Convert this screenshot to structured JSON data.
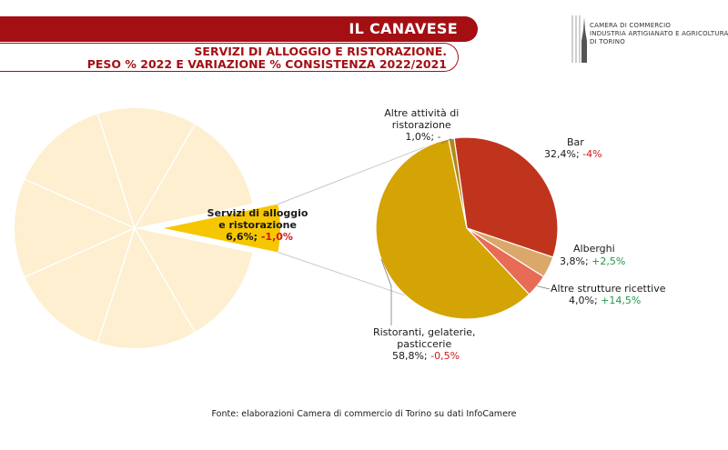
{
  "header": {
    "banner_title": "IL CANAVESE",
    "subtitle_line1": "SERVIZI DI ALLOGGIO E RISTORAZIONE.",
    "subtitle_line2": "PESO % 2022 E VARIAZIONE % CONSISTENZA 2022/2021"
  },
  "logo": {
    "line1": "CAMERA DI COMMERCIO",
    "line2": "INDUSTRIA ARTIGIANATO E AGRICOLTURA",
    "line3": "DI TORINO"
  },
  "chart_data": {
    "type": "pie",
    "title": "SERVIZI DI ALLOGGIO E RISTORAZIONE. PESO % 2022 E VARIAZIONE % CONSISTENZA 2022/2021",
    "main": {
      "highlight": {
        "label_line1": "Servizi di alloggio",
        "label_line2": "e ristorazione",
        "share_text": "6,6%;",
        "change_text": "-1,0%",
        "value": 6.6,
        "change": -1.0
      },
      "other_value": 93.4,
      "other_slice_count": 7
    },
    "detail": [
      {
        "name_lines": [
          "Bar"
        ],
        "value": 32.4,
        "share_text": "32,4%;",
        "change_text": "-4%",
        "trend": "neg",
        "color": "#c0341d"
      },
      {
        "name_lines": [
          "Alberghi"
        ],
        "value": 3.8,
        "share_text": "3,8%;",
        "change_text": "+2,5%",
        "trend": "pos",
        "color": "#dba86b"
      },
      {
        "name_lines": [
          "Altre strutture ricettive"
        ],
        "value": 4.0,
        "share_text": "4,0%;",
        "change_text": "+14,5%",
        "trend": "pos",
        "color": "#e86b55"
      },
      {
        "name_lines": [
          "Ristoranti, gelaterie,",
          "pasticcerie"
        ],
        "value": 58.8,
        "share_text": "58,8%;",
        "change_text": "-0,5%",
        "trend": "neg",
        "color": "#d4a304"
      },
      {
        "name_lines": [
          "Altre attività di",
          "ristorazione"
        ],
        "value": 1.0,
        "share_text": "1,0%;",
        "change_text": "-",
        "trend": "neg",
        "color": "#b08a1a"
      }
    ],
    "colors": {
      "main_other": "#fdefcf",
      "main_highlight": "#f6c600",
      "connector": "#c8c8c8",
      "negative": "#d01919",
      "positive": "#1f9a4b"
    }
  },
  "source": "Fonte: elaborazioni Camera di commercio di Torino su dati InfoCamere"
}
